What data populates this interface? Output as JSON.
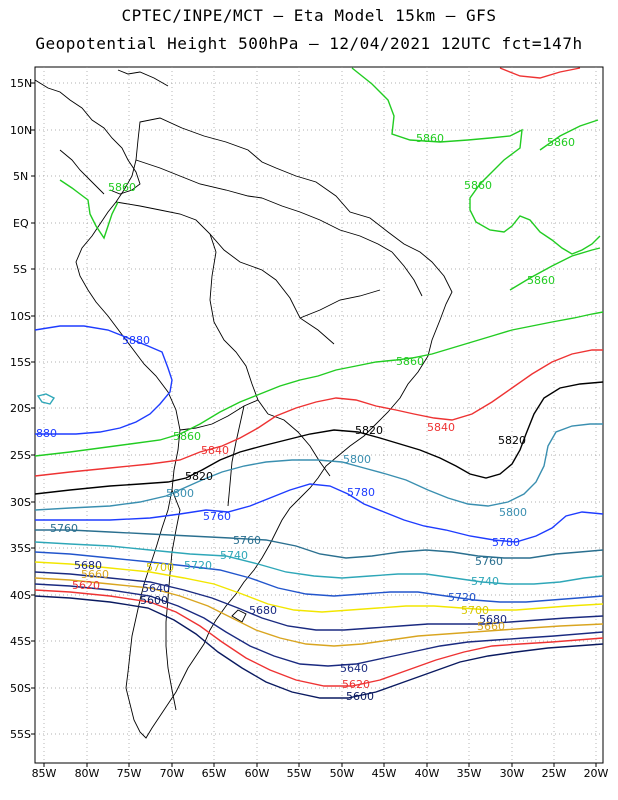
{
  "title": {
    "line1": "CPTEC/INPE/MCT –  Eta Model 15km – GFS",
    "line2": "Geopotential Height 500hPa – 12/04/2021 12UTC fct=147h"
  },
  "axes": {
    "lat_labels": [
      "15N",
      "10N",
      "5N",
      "EQ",
      "5S",
      "10S",
      "15S",
      "20S",
      "25S",
      "30S",
      "35S",
      "40S",
      "45S",
      "50S",
      "55S"
    ],
    "lon_labels": [
      "85W",
      "80W",
      "75W",
      "70W",
      "65W",
      "60W",
      "55W",
      "50W",
      "45W",
      "40W",
      "35W",
      "30W",
      "25W",
      "20W"
    ]
  },
  "contour_colors": {
    "5880": "#1e3cff",
    "5860": "#22cc22",
    "5840": "#ee3333",
    "5820": "#000000",
    "5800": "#3a8fb0",
    "5780": "#1e3cff",
    "5760": "#2a6f8f",
    "5740": "#2ea7b8",
    "5720": "#2255cc",
    "5700": "#f2e600",
    "5680": "#d9a520",
    "5660": "#1a2a80",
    "5640": "#1a2a80",
    "5620": "#ee3333",
    "5600": "#0a1a60",
    "5860_north": "#ee3333"
  },
  "contour_labels": [
    {
      "text": "5860",
      "color": "#22cc22"
    },
    {
      "text": "5860",
      "color": "#22cc22"
    },
    {
      "text": "5860",
      "color": "#22cc22"
    },
    {
      "text": "5860",
      "color": "#22cc22"
    },
    {
      "text": "5860",
      "color": "#22cc22"
    },
    {
      "text": "5860",
      "color": "#22cc22"
    },
    {
      "text": "5860",
      "color": "#22cc22"
    },
    {
      "text": "5880",
      "color": "#1e3cff"
    },
    {
      "text": "880",
      "color": "#1e3cff"
    },
    {
      "text": "5840",
      "color": "#ee3333"
    },
    {
      "text": "5840",
      "color": "#ee3333"
    },
    {
      "text": "5820",
      "color": "#000000"
    },
    {
      "text": "5820",
      "color": "#000000"
    },
    {
      "text": "5820",
      "color": "#000000"
    },
    {
      "text": "5800",
      "color": "#3a8fb0"
    },
    {
      "text": "5800",
      "color": "#3a8fb0"
    },
    {
      "text": "5800",
      "color": "#3a8fb0"
    },
    {
      "text": "5780",
      "color": "#1e3cff"
    },
    {
      "text": "5780",
      "color": "#1e3cff"
    },
    {
      "text": "5760",
      "color": "#1e3cff"
    },
    {
      "text": "5760",
      "color": "#2a6f8f"
    },
    {
      "text": "5760",
      "color": "#2a6f8f"
    },
    {
      "text": "5760",
      "color": "#2a6f8f"
    },
    {
      "text": "5740",
      "color": "#2ea7b8"
    },
    {
      "text": "5740",
      "color": "#2ea7b8"
    },
    {
      "text": "5720",
      "color": "#2ea7b8"
    },
    {
      "text": "5720",
      "color": "#2255cc"
    },
    {
      "text": "5700",
      "color": "#d9c800"
    },
    {
      "text": "5700",
      "color": "#d9c800"
    },
    {
      "text": "5680",
      "color": "#1a2a80"
    },
    {
      "text": "5680",
      "color": "#1a2a80"
    },
    {
      "text": "5680",
      "color": "#1a2a80"
    },
    {
      "text": "5660",
      "color": "#d9a520"
    },
    {
      "text": "5660",
      "color": "#d9a520"
    },
    {
      "text": "5640",
      "color": "#1a2a80"
    },
    {
      "text": "5640",
      "color": "#1a2a80"
    },
    {
      "text": "5620",
      "color": "#ee3333"
    },
    {
      "text": "5620",
      "color": "#ee3333"
    },
    {
      "text": "5600",
      "color": "#0a1a60"
    },
    {
      "text": "5600",
      "color": "#0a1a60"
    }
  ]
}
